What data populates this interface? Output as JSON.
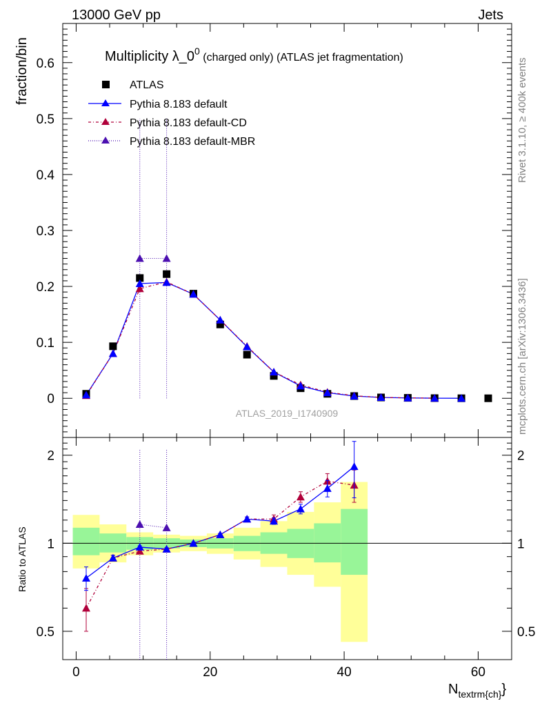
{
  "header": {
    "left": "13000 GeV pp",
    "right": "Jets"
  },
  "side_labels": {
    "top": "Rivet 3.1.10, ≥ 400k events",
    "bottom": "mcplots.cern.ch [arXiv:1306.3436]"
  },
  "chart_data": {
    "type": "scatter",
    "title_main": "Multiplicity λ_0",
    "title_sup": "0",
    "title_rest": " (charged only) (ATLAS jet fragmentation)",
    "watermark": "ATLAS_2019_I1740909",
    "ylabel": "fraction/bin",
    "ratio_ylabel": "Ratio to ATLAS",
    "xlabel_main": "N",
    "xlabel_sub": "textrm{ch}",
    "xlabel_end": "}",
    "xlim": [
      -2,
      65
    ],
    "ylim": [
      -0.07,
      0.67
    ],
    "ratio_ylim": [
      0.4,
      2.3
    ],
    "x_ticks": [
      "0",
      "20",
      "40",
      "60"
    ],
    "y_ticks": [
      "0",
      "0.1",
      "0.2",
      "0.3",
      "0.4",
      "0.5",
      "0.6"
    ],
    "ratio_ticks": [
      "0.5",
      "1",
      "2"
    ],
    "x": [
      1.5,
      5.5,
      9.5,
      13.5,
      17.5,
      21.5,
      25.5,
      29.5,
      33.5,
      37.5,
      41.5,
      45.5,
      49.5,
      53.5,
      57.5,
      61.5
    ],
    "series": [
      {
        "name": "ATLAS",
        "color": "#000000",
        "values": [
          0.008,
          0.093,
          0.215,
          0.222,
          0.187,
          0.132,
          0.078,
          0.04,
          0.018,
          0.008,
          0.004,
          0.0015,
          0.0008,
          0.0003,
          0.0001,
          5e-05
        ]
      },
      {
        "name": "Pythia 8.183 default",
        "color": "#0000ff",
        "values": [
          0.006,
          0.08,
          0.205,
          0.207,
          0.186,
          0.14,
          0.092,
          0.047,
          0.022,
          0.01,
          0.004,
          0.0015,
          0.0006,
          0.0002,
          5e-05
        ],
        "ratio": [
          0.76,
          0.89,
          0.97,
          0.955,
          1.0,
          1.07,
          1.21,
          1.19,
          1.31,
          1.54,
          1.83
        ],
        "ratio_err": [
          0.07,
          0.02,
          0.01,
          0.01,
          0.01,
          0.01,
          0.02,
          0.03,
          0.05,
          0.1,
          0.4
        ]
      },
      {
        "name": "Pythia 8.183 default-CD",
        "color": "#b0003a",
        "values": [
          0.005,
          0.08,
          0.196,
          0.208,
          0.186,
          0.14,
          0.093,
          0.047,
          0.024,
          0.011,
          0.0045,
          0.0016,
          0.0007,
          0.0002
        ],
        "ratio": [
          0.6,
          0.89,
          0.94,
          0.955,
          1.0,
          1.07,
          1.21,
          1.21,
          1.44,
          1.63,
          1.58
        ],
        "ratio_err": [
          0.1,
          0.02,
          0.01,
          0.01,
          0.01,
          0.01,
          0.02,
          0.04,
          0.06,
          0.1,
          0.2
        ]
      },
      {
        "name": "Pythia 8.183 default-MBR",
        "color": "#4b0fb0",
        "points": [
          {
            "x": 9.5,
            "y": 0.25
          },
          {
            "x": 13.5,
            "y": 0.25
          }
        ],
        "ratio": [
          1.16,
          1.13
        ],
        "spike_x": [
          9.5,
          13.5
        ]
      }
    ],
    "bands": {
      "bin_edges": [
        -0.5,
        3.5,
        7.5,
        11.5,
        15.5,
        19.5,
        23.5,
        27.5,
        31.5,
        35.5,
        39.5,
        43.5
      ],
      "green_lo": [
        0.91,
        0.93,
        0.95,
        0.96,
        0.97,
        0.96,
        0.94,
        0.92,
        0.89,
        0.86,
        0.78
      ],
      "green_hi": [
        1.13,
        1.08,
        1.05,
        1.04,
        1.03,
        1.04,
        1.06,
        1.09,
        1.12,
        1.17,
        1.31
      ],
      "yellow_lo": [
        0.82,
        0.86,
        0.91,
        0.93,
        0.94,
        0.92,
        0.88,
        0.83,
        0.78,
        0.71,
        0.46
      ],
      "yellow_hi": [
        1.25,
        1.16,
        1.09,
        1.07,
        1.06,
        1.08,
        1.13,
        1.19,
        1.28,
        1.38,
        1.62
      ],
      "green_color": "#98f598",
      "yellow_color": "#ffff99"
    }
  }
}
